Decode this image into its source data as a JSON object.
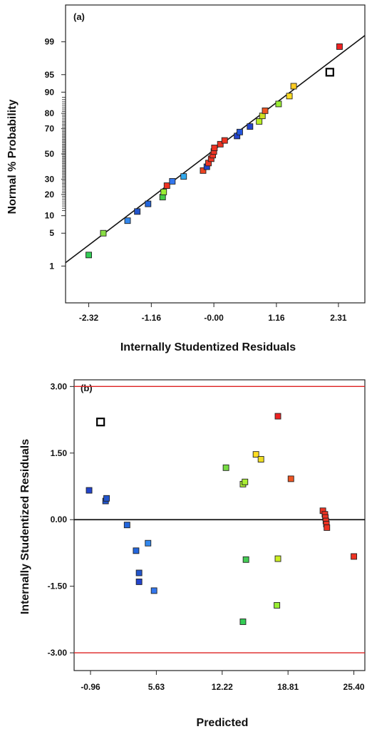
{
  "chart_data": [
    {
      "type": "scatter",
      "panel_label": "(a)",
      "xlabel": "Internally  Studentized Residuals",
      "ylabel": "Normal % Probability",
      "x_ticks": [
        "-2.32",
        "-1.16",
        "-0.00",
        "1.16",
        "2.31"
      ],
      "x_tick_values": [
        -2.32,
        -1.16,
        0.0,
        1.16,
        2.31
      ],
      "xlim": [
        -2.75,
        2.8
      ],
      "y_ticks": [
        "1",
        "5",
        "10",
        "20",
        "30",
        "50",
        "70",
        "80",
        "90",
        "95",
        "99"
      ],
      "y_tick_values": [
        1,
        5,
        10,
        20,
        30,
        50,
        70,
        80,
        90,
        95,
        99
      ],
      "ylim_probability": [
        0.1,
        99.9
      ],
      "grid": false,
      "legend": "none",
      "reference_line": {
        "from": [
          -2.75,
          1.2
        ],
        "to": [
          2.8,
          99.3
        ]
      },
      "points": [
        {
          "x": -2.32,
          "p": 1.8,
          "color": "#33cc55",
          "hollow": false
        },
        {
          "x": -2.05,
          "p": 5.0,
          "color": "#88dd44",
          "hollow": false
        },
        {
          "x": -1.6,
          "p": 8.3,
          "color": "#3388ee",
          "hollow": false
        },
        {
          "x": -1.42,
          "p": 11.6,
          "color": "#2255cc",
          "hollow": false
        },
        {
          "x": -1.22,
          "p": 15.0,
          "color": "#2266dd",
          "hollow": false
        },
        {
          "x": -0.95,
          "p": 18.5,
          "color": "#44cc44",
          "hollow": false
        },
        {
          "x": -0.93,
          "p": 21.5,
          "color": "#99ee33",
          "hollow": false
        },
        {
          "x": -0.87,
          "p": 25.5,
          "color": "#ee3322",
          "hollow": false
        },
        {
          "x": -0.77,
          "p": 28.5,
          "color": "#3377ee",
          "hollow": false
        },
        {
          "x": -0.56,
          "p": 32.0,
          "color": "#33aaee",
          "hollow": false
        },
        {
          "x": -0.2,
          "p": 36.5,
          "color": "#ee4422",
          "hollow": false
        },
        {
          "x": -0.13,
          "p": 39.5,
          "color": "#2244cc",
          "hollow": false
        },
        {
          "x": -0.1,
          "p": 42.5,
          "color": "#ee3322",
          "hollow": false
        },
        {
          "x": -0.05,
          "p": 46.0,
          "color": "#ee3322",
          "hollow": false
        },
        {
          "x": -0.02,
          "p": 49.0,
          "color": "#ee3322",
          "hollow": false
        },
        {
          "x": 0.0,
          "p": 52.0,
          "color": "#ee3322",
          "hollow": false
        },
        {
          "x": 0.01,
          "p": 55.0,
          "color": "#ee3322",
          "hollow": false
        },
        {
          "x": 0.12,
          "p": 58.0,
          "color": "#ee3322",
          "hollow": false
        },
        {
          "x": 0.2,
          "p": 61.0,
          "color": "#ee3322",
          "hollow": false
        },
        {
          "x": 0.43,
          "p": 64.5,
          "color": "#2244cc",
          "hollow": false
        },
        {
          "x": 0.48,
          "p": 67.5,
          "color": "#2255dd",
          "hollow": false
        },
        {
          "x": 0.67,
          "p": 71.5,
          "color": "#2244cc",
          "hollow": false
        },
        {
          "x": 0.84,
          "p": 75.0,
          "color": "#bbee22",
          "hollow": false
        },
        {
          "x": 0.9,
          "p": 78.5,
          "color": "#ccdd22",
          "hollow": false
        },
        {
          "x": 0.95,
          "p": 81.5,
          "color": "#ee5522",
          "hollow": false
        },
        {
          "x": 1.2,
          "p": 85.0,
          "color": "#99ee33",
          "hollow": false
        },
        {
          "x": 1.4,
          "p": 88.5,
          "color": "#ffdd22",
          "hollow": false
        },
        {
          "x": 1.48,
          "p": 92.0,
          "color": "#ffcc22",
          "hollow": false
        },
        {
          "x": 2.15,
          "p": 95.5,
          "color": "#ffffff",
          "hollow": true
        },
        {
          "x": 2.33,
          "p": 98.7,
          "color": "#ee2222",
          "hollow": false
        }
      ]
    },
    {
      "type": "scatter",
      "panel_label": "(b)",
      "xlabel": "Predicted",
      "ylabel": "Internally Studentized Residuals",
      "x_ticks": [
        "-0.96",
        "5.63",
        "12.22",
        "18.81",
        "25.40"
      ],
      "x_tick_values": [
        -0.96,
        5.63,
        12.22,
        18.81,
        25.4
      ],
      "xlim": [
        -2.6,
        26.5
      ],
      "y_ticks": [
        "3.00",
        "1.50",
        "0.00",
        "-1.50",
        "-3.00"
      ],
      "y_tick_values": [
        3.0,
        1.5,
        0.0,
        -1.5,
        -3.0
      ],
      "ylim": [
        -3.4,
        3.15
      ],
      "grid": false,
      "legend": "none",
      "limit_lines": [
        3.0,
        -3.0
      ],
      "limit_line_color": "#dd2222",
      "zero_line": 0.0,
      "points": [
        {
          "x": 0.05,
          "y": 2.2,
          "color": "#ffffff",
          "hollow": true
        },
        {
          "x": -1.1,
          "y": 0.66,
          "color": "#2244cc",
          "hollow": false
        },
        {
          "x": 0.55,
          "y": 0.42,
          "color": "#2255cc",
          "hollow": false
        },
        {
          "x": 0.65,
          "y": 0.48,
          "color": "#2255cc",
          "hollow": false
        },
        {
          "x": 2.7,
          "y": -0.12,
          "color": "#2266dd",
          "hollow": false
        },
        {
          "x": 3.6,
          "y": -0.7,
          "color": "#2266dd",
          "hollow": false
        },
        {
          "x": 3.9,
          "y": -1.2,
          "color": "#2255cc",
          "hollow": false
        },
        {
          "x": 3.9,
          "y": -1.4,
          "color": "#2244cc",
          "hollow": false
        },
        {
          "x": 4.8,
          "y": -0.53,
          "color": "#3388ee",
          "hollow": false
        },
        {
          "x": 5.4,
          "y": -1.6,
          "color": "#3377ee",
          "hollow": false
        },
        {
          "x": 12.6,
          "y": 1.17,
          "color": "#77dd44",
          "hollow": false
        },
        {
          "x": 14.3,
          "y": 0.8,
          "color": "#aaee33",
          "hollow": false
        },
        {
          "x": 14.5,
          "y": 0.85,
          "color": "#aaee33",
          "hollow": false
        },
        {
          "x": 14.6,
          "y": -0.9,
          "color": "#44cc55",
          "hollow": false
        },
        {
          "x": 14.3,
          "y": -2.3,
          "color": "#33cc55",
          "hollow": false
        },
        {
          "x": 15.6,
          "y": 1.47,
          "color": "#ffdd22",
          "hollow": false
        },
        {
          "x": 16.1,
          "y": 1.36,
          "color": "#eedd22",
          "hollow": false
        },
        {
          "x": 17.8,
          "y": 2.33,
          "color": "#ee2222",
          "hollow": false
        },
        {
          "x": 17.8,
          "y": -0.88,
          "color": "#ccee22",
          "hollow": false
        },
        {
          "x": 17.7,
          "y": -1.93,
          "color": "#99ee33",
          "hollow": false
        },
        {
          "x": 19.1,
          "y": 0.92,
          "color": "#ee5522",
          "hollow": false
        },
        {
          "x": 22.3,
          "y": 0.2,
          "color": "#ee3322",
          "hollow": false
        },
        {
          "x": 22.5,
          "y": 0.12,
          "color": "#ee3322",
          "hollow": false
        },
        {
          "x": 22.55,
          "y": 0.05,
          "color": "#ee3322",
          "hollow": false
        },
        {
          "x": 22.6,
          "y": -0.03,
          "color": "#ee3322",
          "hollow": false
        },
        {
          "x": 22.65,
          "y": -0.1,
          "color": "#ee3322",
          "hollow": false
        },
        {
          "x": 22.7,
          "y": -0.18,
          "color": "#ee3322",
          "hollow": false
        },
        {
          "x": 25.4,
          "y": -0.83,
          "color": "#ee3322",
          "hollow": false
        }
      ]
    }
  ]
}
